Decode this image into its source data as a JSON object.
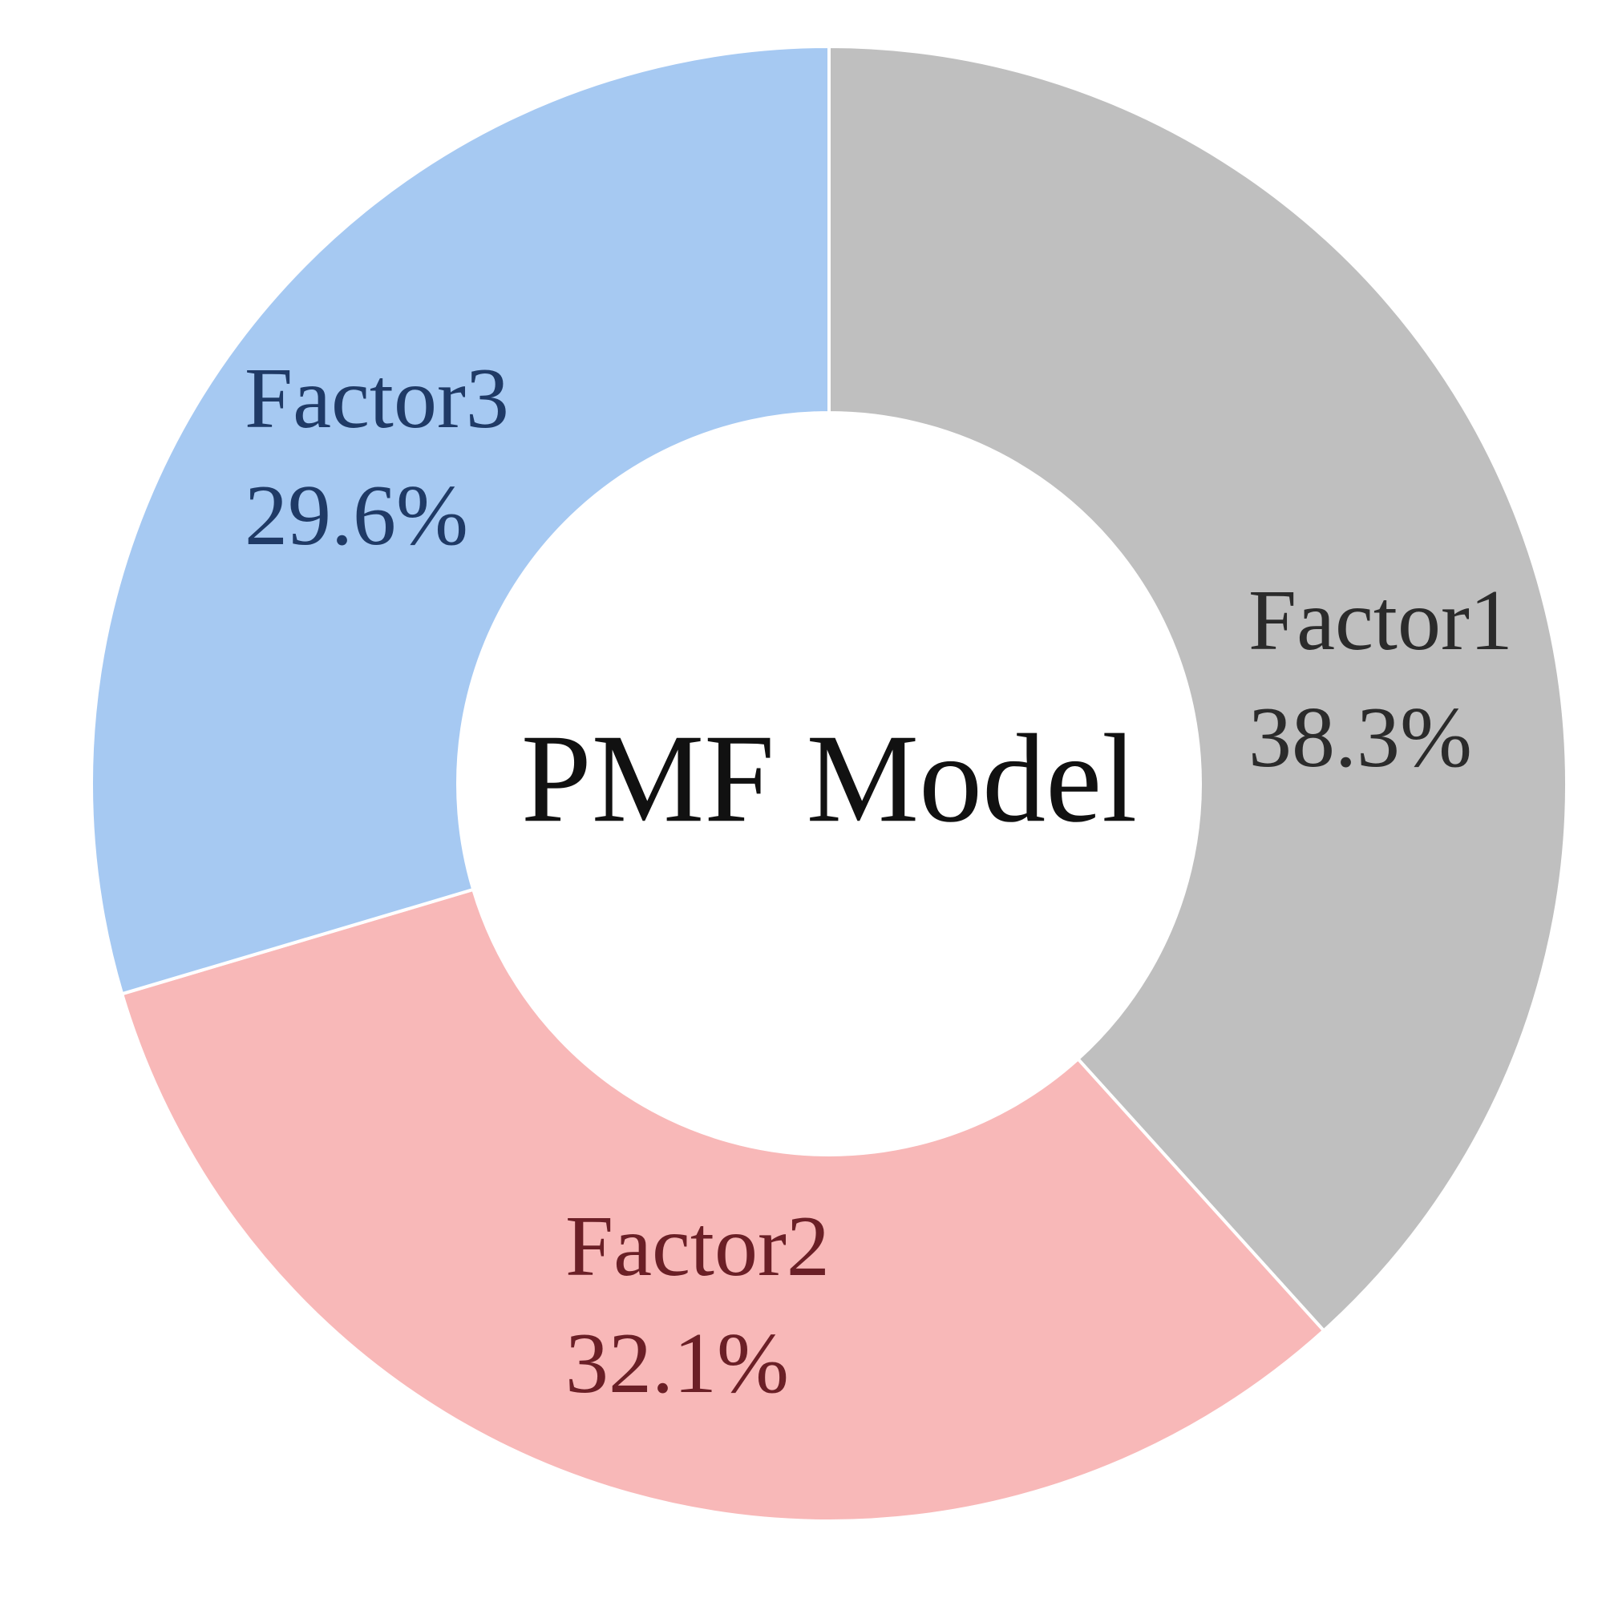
{
  "chart_data": {
    "type": "pie",
    "center_label": "PMF Model",
    "categories": [
      "Factor1",
      "Factor2",
      "Factor3"
    ],
    "values": [
      38.3,
      32.1,
      29.6
    ],
    "value_labels": [
      "38.3%",
      "32.1%",
      "29.6%"
    ],
    "colors": [
      "#bfbfbf",
      "#f8b8b8",
      "#a6c9f2"
    ],
    "label_colors": [
      "#2b2b2b",
      "#6b1f26",
      "#1f3a66"
    ]
  }
}
